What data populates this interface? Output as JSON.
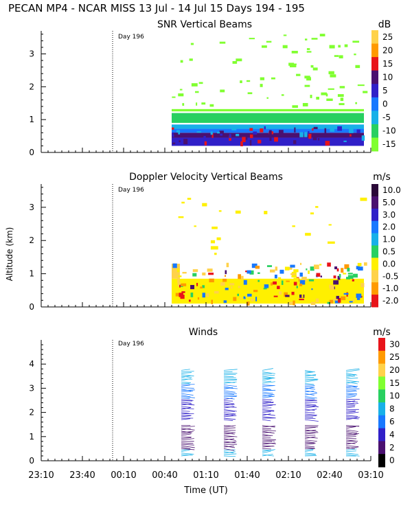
{
  "header": "PECAN MP4 - NCAR MISS  13 Jul - 14 Jul 15 Days 194 - 195",
  "shared": {
    "ylabel": "Altitude (km)",
    "xlabel": "Time (UT)",
    "xticks": [
      "23:10",
      "23:40",
      "00:10",
      "00:40",
      "01:10",
      "01:40",
      "02:10",
      "02:40",
      "03:10"
    ],
    "day_marker": "Day 196",
    "colors": {
      "axis": "#000000",
      "snr_bg_band": "#3a2a8a"
    }
  },
  "chart_data": [
    {
      "type": "heatmap",
      "title": "SNR Vertical Beams",
      "unit": "dB",
      "ylim": [
        0,
        3.7
      ],
      "yticks": [
        "0",
        "1",
        "2",
        "3"
      ],
      "colorbar": {
        "labels": [
          "25",
          "20",
          "15",
          "10",
          "5",
          "0",
          "-5",
          "-10",
          "-15"
        ],
        "colors": [
          "#ffd24a",
          "#ff9a00",
          "#e8141a",
          "#4a1070",
          "#3020c8",
          "#1878ff",
          "#18b0e8",
          "#28d060",
          "#80ff30"
        ]
      },
      "data_start": "00:45",
      "data_end": "03:05"
    },
    {
      "type": "heatmap",
      "title": "Doppler Velocity Vertical Beams",
      "unit": "m/s",
      "ylim": [
        0,
        3.7
      ],
      "yticks": [
        "0",
        "1",
        "2",
        "3"
      ],
      "colorbar": {
        "labels": [
          "10.0",
          "5.0",
          "3.0",
          "2.0",
          "1.0",
          "0.5",
          "0.0",
          "-0.5",
          "-1.0",
          "-2.0"
        ],
        "colors": [
          "#2a0838",
          "#4a1070",
          "#3020c8",
          "#1878ff",
          "#18b0e8",
          "#28d060",
          "#fff000",
          "#ffd24a",
          "#ff9a00",
          "#e8141a"
        ]
      },
      "data_start": "00:45",
      "data_end": "03:05"
    },
    {
      "type": "scatter",
      "title": "Winds",
      "unit": "m/s",
      "ylim": [
        0,
        5
      ],
      "yticks": [
        "0",
        "1",
        "2",
        "3",
        "4"
      ],
      "colorbar": {
        "labels": [
          "30",
          "25",
          "20",
          "15",
          "10",
          "8",
          "6",
          "4",
          "2",
          "0"
        ],
        "colors": [
          "#e8141a",
          "#ff9a00",
          "#ffd24a",
          "#80ff30",
          "#28d060",
          "#18b0e8",
          "#1878ff",
          "#3020c8",
          "#4a1070",
          "#000000"
        ]
      },
      "profile_times": [
        "00:52",
        "01:23",
        "01:51",
        "02:22",
        "02:52"
      ]
    }
  ]
}
